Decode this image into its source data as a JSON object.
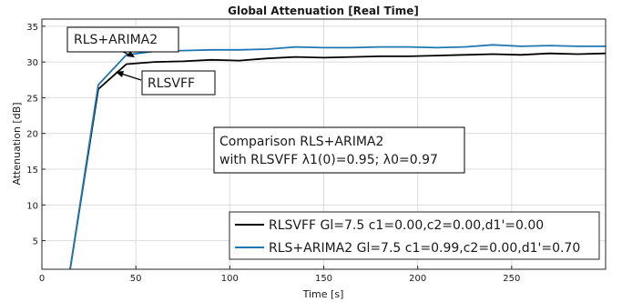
{
  "chart_data": {
    "type": "line",
    "title": "Global Attenuation [Real Time]",
    "xlabel": "Time [s]",
    "ylabel": "Attenuation [dB]",
    "xlim": [
      0,
      300
    ],
    "ylim": [
      1,
      36
    ],
    "xticks": [
      0,
      50,
      100,
      150,
      200,
      250
    ],
    "yticks": [
      5,
      10,
      15,
      20,
      25,
      30,
      35
    ],
    "grid": true,
    "legend_position": "bottom-right",
    "series": [
      {
        "name": "RLSVFF Gl=7.5 c1=0.00,c2=0.00,d1'=0.00",
        "color": "#000000",
        "x": [
          15,
          30,
          45,
          60,
          75,
          90,
          105,
          120,
          135,
          150,
          165,
          180,
          195,
          210,
          225,
          240,
          255,
          270,
          285,
          300
        ],
        "y": [
          1,
          26.2,
          29.7,
          30.0,
          30.1,
          30.3,
          30.2,
          30.5,
          30.7,
          30.6,
          30.7,
          30.8,
          30.8,
          30.9,
          31.0,
          31.1,
          31.0,
          31.2,
          31.1,
          31.2
        ]
      },
      {
        "name": "RLS+ARIMA2 Gl=7.5 c1=0.99,c2=0.00,d1'=0.70",
        "color": "#1f77b4",
        "x": [
          15,
          30,
          45,
          60,
          75,
          90,
          105,
          120,
          135,
          150,
          165,
          180,
          195,
          210,
          225,
          240,
          255,
          270,
          285,
          300
        ],
        "y": [
          1,
          26.8,
          31.0,
          31.5,
          31.6,
          31.7,
          31.7,
          31.8,
          32.1,
          32.0,
          32.0,
          32.1,
          32.1,
          32.0,
          32.1,
          32.4,
          32.2,
          32.3,
          32.2,
          32.2
        ]
      }
    ],
    "annotations": {
      "rls_arima_label": "RLS+ARIMA2",
      "rlsvff_label": "RLSVFF",
      "comparison_line1": "Comparison RLS+ARIMA2",
      "comparison_line2": "with RLSVFF λ1(0)=0.95; λ0=0.97"
    }
  }
}
